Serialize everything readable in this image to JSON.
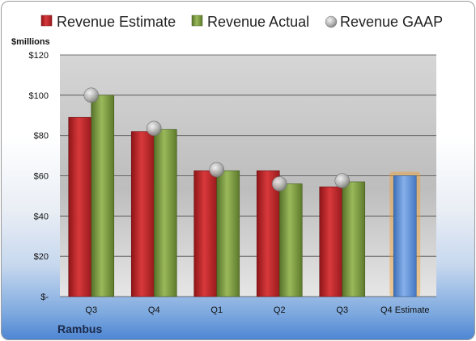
{
  "chart_data": {
    "type": "bar",
    "units_label": "$millions",
    "company": "Rambus",
    "categories": [
      "Q3",
      "Q4",
      "Q1",
      "Q2",
      "Q3",
      "Q4 Estimate"
    ],
    "ylim": [
      0,
      120
    ],
    "yticks": [
      0,
      20,
      40,
      60,
      80,
      100,
      120
    ],
    "ytick_labels": [
      "$-",
      "$20",
      "$40",
      "$60",
      "$80",
      "$100",
      "$120"
    ],
    "grid": true,
    "legend_position": "top",
    "series": [
      {
        "name": "Revenue Estimate",
        "kind": "bar",
        "color": "#c0262a",
        "values": [
          89,
          82,
          62.5,
          62.5,
          54.5,
          null
        ]
      },
      {
        "name": "Revenue Actual",
        "kind": "bar",
        "color": "#7a9a3c",
        "values": [
          100,
          83,
          62.5,
          56,
          57,
          null
        ]
      },
      {
        "name": "Revenue GAAP",
        "kind": "marker",
        "color": "#a8a8a8",
        "values": [
          100,
          83.5,
          63,
          56,
          57.5,
          null
        ]
      }
    ],
    "forecast": {
      "category_index": 5,
      "value": 60,
      "color": "#5b8fd6",
      "glow_color": "#f0a030"
    }
  }
}
